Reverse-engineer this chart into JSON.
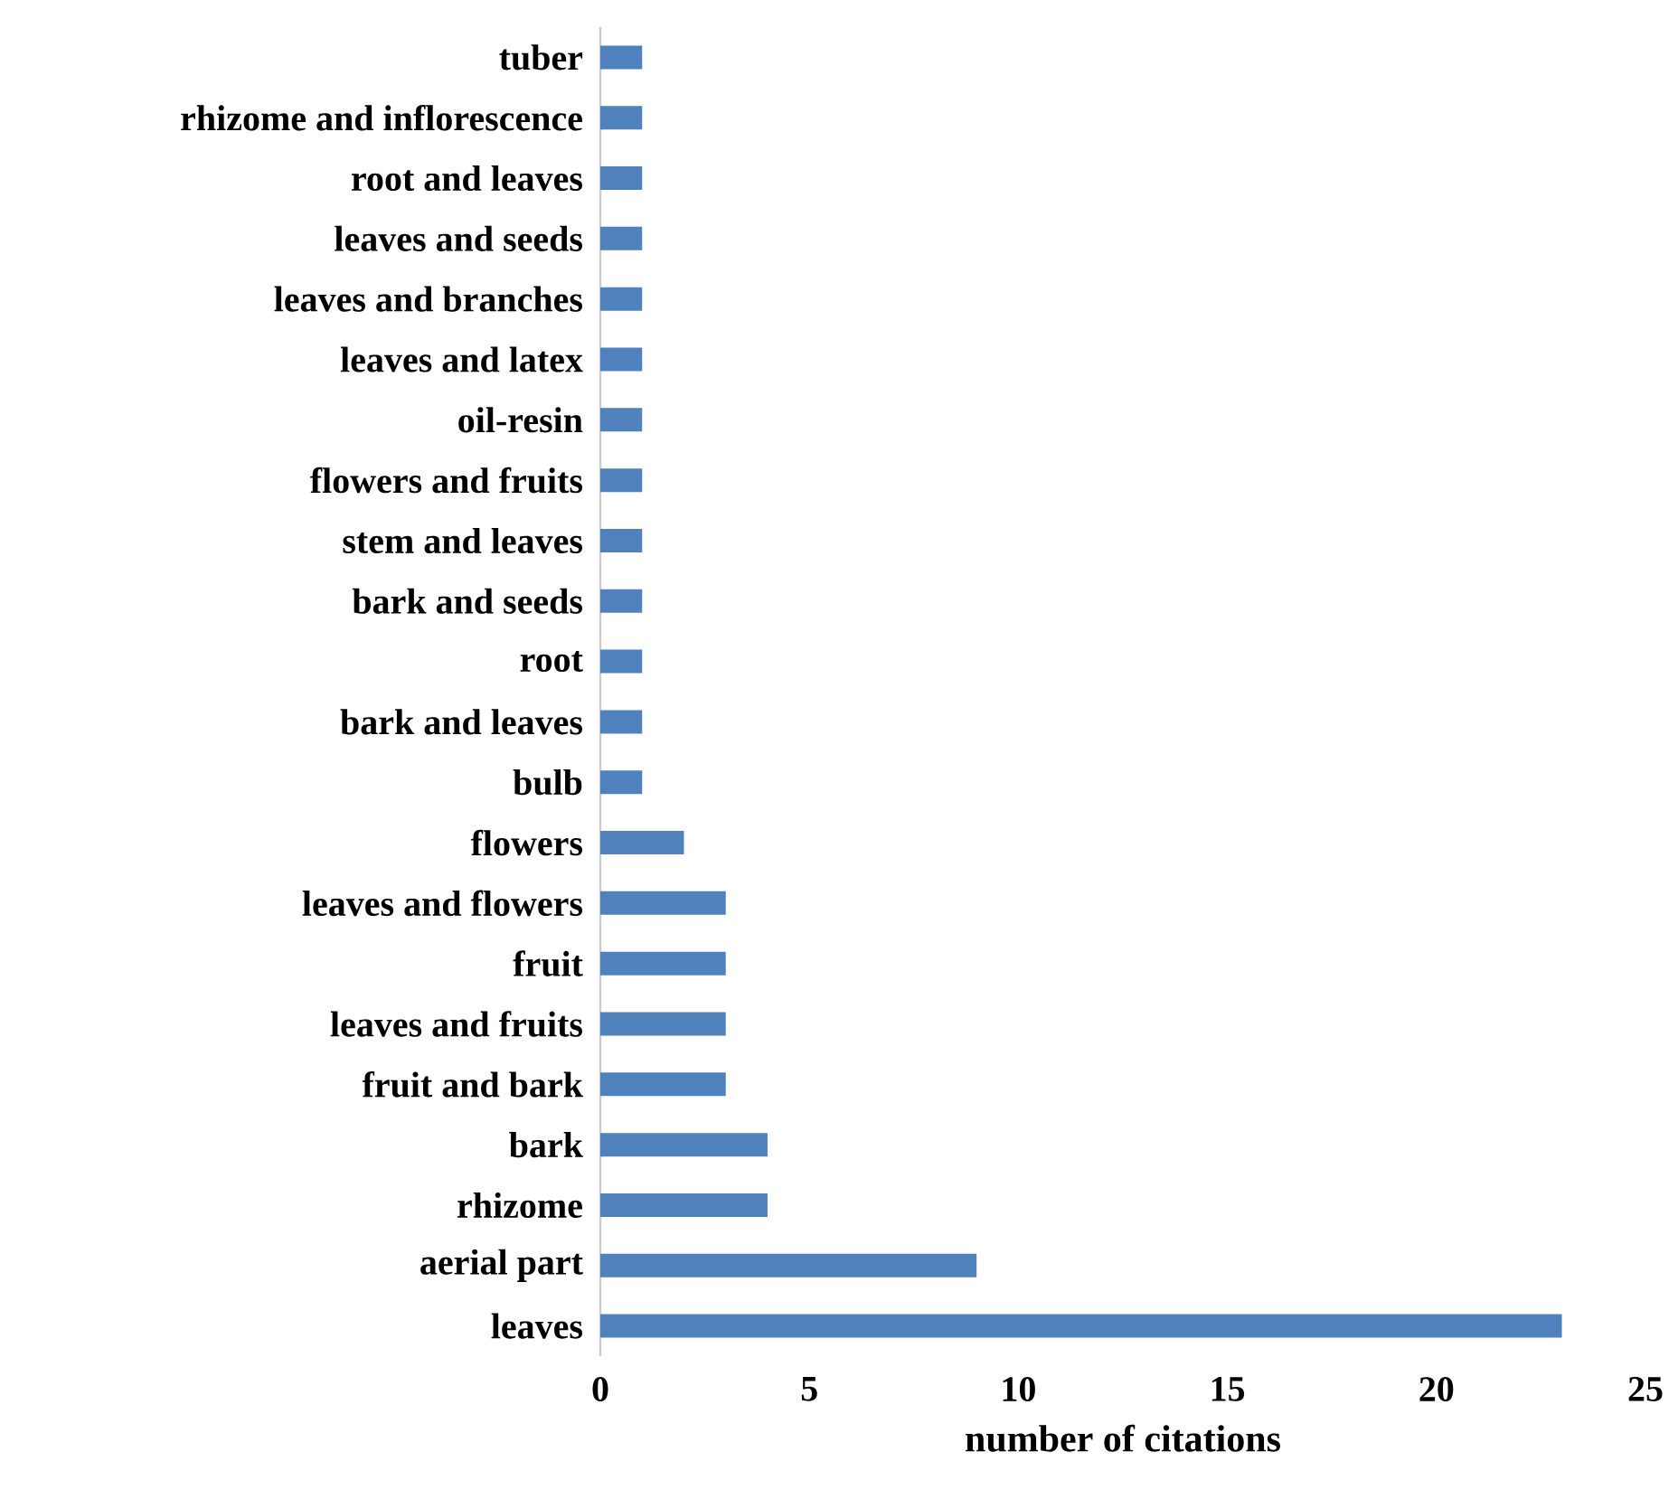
{
  "chart_data": {
    "type": "bar",
    "orientation": "horizontal",
    "xlabel": "number of citations",
    "categories": [
      "tuber",
      "rhizome and inflorescence",
      "root and leaves",
      "leaves and seeds",
      "leaves and branches",
      "leaves and latex",
      "oil-resin",
      "flowers and fruits",
      "stem and leaves",
      "bark and seeds",
      "root",
      "bark and leaves",
      "bulb",
      "flowers",
      "leaves and flowers",
      "fruit",
      "leaves and fruits",
      "fruit and bark",
      "bark",
      "rhizome",
      "aerial part",
      "leaves"
    ],
    "values": [
      1,
      1,
      1,
      1,
      1,
      1,
      1,
      1,
      1,
      1,
      1,
      1,
      1,
      2,
      3,
      3,
      3,
      3,
      4,
      4,
      9,
      23
    ],
    "color": "#4f81bd",
    "xlim": [
      0,
      25
    ],
    "xticks": [
      0,
      5,
      10,
      15,
      20,
      25
    ]
  }
}
